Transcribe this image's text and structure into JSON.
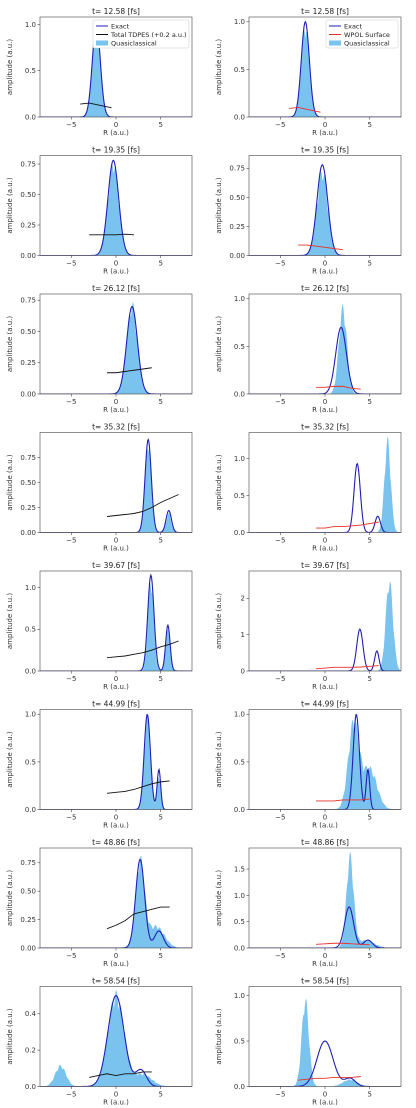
{
  "legend_left": [
    "Exact",
    "Total TDPES (+0.2 a.u.)",
    "Quasiclassical"
  ],
  "legend_right": [
    "Exact",
    "WPOL Surface",
    "Quasiclassical"
  ],
  "colors": {
    "exact": "#1f1fb4",
    "tdpes": "#111111",
    "wpol": "#e8312a",
    "quasi": "#79c3ee",
    "axes": "#444444"
  },
  "chart_data": {
    "type": "line",
    "xlabel": "R (a.u.)",
    "ylabel": "amplitude (a.u.)",
    "xlim": [
      -8.5,
      8.5
    ],
    "x_ticks": [
      -5,
      0,
      5
    ],
    "rows": [
      {
        "title": "t= 12.58 [fs]",
        "left_ylim": [
          0,
          1.08
        ],
        "left_yticks": [
          0.0,
          0.5,
          1.0
        ],
        "right_ylim": [
          0,
          1.05
        ],
        "right_yticks": [
          0.0,
          0.5,
          1.0
        ],
        "exact": [
          {
            "mu": -2.2,
            "sigma": 0.45,
            "amp": 1.0
          }
        ],
        "quasi_left": [
          {
            "mu": -2.2,
            "sigma": 0.45,
            "amp": 1.05
          }
        ],
        "quasi_right": [
          {
            "mu": -2.2,
            "sigma": 0.45,
            "amp": 1.0
          }
        ],
        "tdpes": [
          [
            -4,
            0.14
          ],
          [
            -3,
            0.15
          ],
          [
            -2,
            0.13
          ],
          [
            -1,
            0.11
          ],
          [
            -0.5,
            0.1
          ]
        ],
        "wpol": [
          [
            -4,
            0.09
          ],
          [
            -3,
            0.1
          ],
          [
            -2,
            0.08
          ],
          [
            -1,
            0.06
          ],
          [
            -0.5,
            0.05
          ]
        ]
      },
      {
        "title": "t= 19.35 [fs]",
        "left_ylim": [
          0,
          0.82
        ],
        "left_yticks": [
          0.0,
          0.25,
          0.5,
          0.75
        ],
        "right_ylim": [
          0,
          0.86
        ],
        "right_yticks": [
          0.0,
          0.25,
          0.5,
          0.75
        ],
        "exact": [
          {
            "mu": -0.3,
            "sigma": 0.6,
            "amp": 0.78
          }
        ],
        "quasi_left": [
          {
            "mu": -0.3,
            "sigma": 0.6,
            "amp": 0.8
          }
        ],
        "quasi_right": [
          {
            "mu": -0.3,
            "sigma": 0.6,
            "amp": 0.76
          }
        ],
        "tdpes": [
          [
            -3,
            0.17
          ],
          [
            -2,
            0.17
          ],
          [
            -1,
            0.17
          ],
          [
            0,
            0.17
          ],
          [
            1,
            0.175
          ],
          [
            2,
            0.17
          ]
        ],
        "wpol": [
          [
            -3,
            0.09
          ],
          [
            -2,
            0.09
          ],
          [
            -1,
            0.08
          ],
          [
            0,
            0.07
          ],
          [
            1,
            0.06
          ],
          [
            2,
            0.05
          ]
        ]
      },
      {
        "title": "t= 26.12 [fs]",
        "left_ylim": [
          0,
          0.8
        ],
        "left_yticks": [
          0.0,
          0.25,
          0.5,
          0.75
        ],
        "right_ylim": [
          0,
          1.05
        ],
        "right_yticks": [
          0.0,
          0.5,
          1.0
        ],
        "exact": [
          {
            "mu": 1.8,
            "sigma": 0.6,
            "amp": 0.7
          }
        ],
        "quasi_left": [
          {
            "mu": 1.8,
            "sigma": 0.6,
            "amp": 0.75
          }
        ],
        "quasi_right": [
          {
            "mu": 2.0,
            "sigma": 0.45,
            "amp": 0.95
          }
        ],
        "tdpes": [
          [
            -1,
            0.17
          ],
          [
            0,
            0.17
          ],
          [
            1,
            0.18
          ],
          [
            2,
            0.19
          ],
          [
            3,
            0.2
          ],
          [
            4,
            0.21
          ]
        ],
        "wpol": [
          [
            -1,
            0.07
          ],
          [
            0,
            0.07
          ],
          [
            1,
            0.08
          ],
          [
            2,
            0.08
          ],
          [
            3,
            0.06
          ],
          [
            4,
            0.05
          ]
        ]
      },
      {
        "title": "t= 35.32 [fs]",
        "left_ylim": [
          0,
          1.0
        ],
        "left_yticks": [
          0.0,
          0.25,
          0.5,
          0.75
        ],
        "right_ylim": [
          0,
          1.35
        ],
        "right_yticks": [
          0.0,
          0.5,
          1.0
        ],
        "exact": [
          {
            "mu": 3.6,
            "sigma": 0.35,
            "amp": 0.93
          },
          {
            "mu": 5.9,
            "sigma": 0.3,
            "amp": 0.22
          }
        ],
        "quasi_left": [
          {
            "mu": 3.6,
            "sigma": 0.33,
            "amp": 0.96
          },
          {
            "mu": 5.9,
            "sigma": 0.28,
            "amp": 0.2
          }
        ],
        "quasi_right": [
          {
            "mu": 7.0,
            "sigma": 0.35,
            "amp": 1.3
          }
        ],
        "tdpes": [
          [
            -1,
            0.16
          ],
          [
            0,
            0.17
          ],
          [
            1,
            0.18
          ],
          [
            2,
            0.19
          ],
          [
            3,
            0.21
          ],
          [
            4,
            0.25
          ],
          [
            5,
            0.3
          ],
          [
            6,
            0.34
          ],
          [
            7,
            0.38
          ]
        ],
        "wpol": [
          [
            -1,
            0.06
          ],
          [
            0,
            0.06
          ],
          [
            1,
            0.08
          ],
          [
            2,
            0.08
          ],
          [
            3,
            0.09
          ],
          [
            4,
            0.1
          ],
          [
            5,
            0.12
          ],
          [
            6,
            0.14
          ]
        ]
      },
      {
        "title": "t= 39.67 [fs]",
        "left_ylim": [
          0,
          1.2
        ],
        "left_yticks": [
          0.0,
          0.5,
          1.0
        ],
        "right_ylim": [
          0,
          2.75
        ],
        "right_yticks": [
          0,
          1,
          2
        ],
        "exact": [
          {
            "mu": 3.9,
            "sigma": 0.35,
            "amp": 1.15
          },
          {
            "mu": 5.8,
            "sigma": 0.25,
            "amp": 0.55
          }
        ],
        "quasi_left": [
          {
            "mu": 3.9,
            "sigma": 0.32,
            "amp": 1.15
          },
          {
            "mu": 5.8,
            "sigma": 0.25,
            "amp": 0.5
          }
        ],
        "quasi_right": [
          {
            "mu": 7.2,
            "sigma": 0.4,
            "amp": 2.6
          }
        ],
        "tdpes": [
          [
            -1,
            0.16
          ],
          [
            0,
            0.17
          ],
          [
            1,
            0.18
          ],
          [
            2,
            0.2
          ],
          [
            3,
            0.22
          ],
          [
            4,
            0.25
          ],
          [
            5,
            0.29
          ],
          [
            6,
            0.32
          ],
          [
            7,
            0.36
          ]
        ],
        "wpol": [
          [
            -1,
            0.06
          ],
          [
            0,
            0.08
          ],
          [
            1,
            0.1
          ],
          [
            2,
            0.1
          ],
          [
            3,
            0.1
          ],
          [
            4,
            0.11
          ],
          [
            5,
            0.13
          ],
          [
            6,
            0.15
          ]
        ]
      },
      {
        "title": "t= 44.99 [fs]",
        "left_ylim": [
          0,
          1.05
        ],
        "left_yticks": [
          0.0,
          0.5,
          1.0
        ],
        "right_ylim": [
          0,
          1.05
        ],
        "right_yticks": [
          0.0,
          0.5,
          1.0
        ],
        "exact": [
          {
            "mu": 3.5,
            "sigma": 0.35,
            "amp": 1.0
          },
          {
            "mu": 4.8,
            "sigma": 0.2,
            "amp": 0.42
          }
        ],
        "quasi_left": [
          {
            "mu": 3.5,
            "sigma": 0.35,
            "amp": 1.0
          },
          {
            "mu": 4.8,
            "sigma": 0.2,
            "amp": 0.38
          }
        ],
        "quasi_right": [
          {
            "mu": 3.2,
            "sigma": 0.6,
            "amp": 0.95
          },
          {
            "mu": 5.0,
            "sigma": 0.8,
            "amp": 0.45
          }
        ],
        "tdpes": [
          [
            -1,
            0.17
          ],
          [
            0,
            0.18
          ],
          [
            1,
            0.19
          ],
          [
            2,
            0.21
          ],
          [
            3,
            0.24
          ],
          [
            4,
            0.27
          ],
          [
            5,
            0.29
          ],
          [
            6,
            0.3
          ]
        ],
        "wpol": [
          [
            -1,
            0.09
          ],
          [
            0,
            0.09
          ],
          [
            1,
            0.09
          ],
          [
            2,
            0.1
          ],
          [
            3,
            0.1
          ],
          [
            4,
            0.1
          ],
          [
            5,
            0.11
          ]
        ]
      },
      {
        "title": "t= 48.86 [fs]",
        "left_ylim": [
          0,
          0.88
        ],
        "left_yticks": [
          0.0,
          0.25,
          0.5,
          0.75
        ],
        "right_ylim": [
          0,
          1.9
        ],
        "right_yticks": [
          0.0,
          0.5,
          1.0,
          1.5
        ],
        "exact": [
          {
            "mu": 2.7,
            "sigma": 0.5,
            "amp": 0.78
          },
          {
            "mu": 4.8,
            "sigma": 0.5,
            "amp": 0.15
          }
        ],
        "quasi_left": [
          {
            "mu": 2.7,
            "sigma": 0.5,
            "amp": 0.8
          },
          {
            "mu": 4.5,
            "sigma": 0.9,
            "amp": 0.2
          }
        ],
        "quasi_right": [
          {
            "mu": 2.8,
            "sigma": 0.4,
            "amp": 1.8
          },
          {
            "mu": 4.5,
            "sigma": 1.0,
            "amp": 0.15
          }
        ],
        "tdpes": [
          [
            -1,
            0.17
          ],
          [
            0,
            0.2
          ],
          [
            1,
            0.24
          ],
          [
            2,
            0.3
          ],
          [
            3,
            0.32
          ],
          [
            4,
            0.34
          ],
          [
            5,
            0.36
          ],
          [
            6,
            0.36
          ]
        ],
        "wpol": [
          [
            -1,
            0.07
          ],
          [
            0,
            0.08
          ],
          [
            1,
            0.09
          ],
          [
            2,
            0.09
          ],
          [
            3,
            0.08
          ],
          [
            4,
            0.07
          ],
          [
            5,
            0.06
          ]
        ]
      },
      {
        "title": "t= 58.54 [fs]",
        "left_ylim": [
          0,
          0.55
        ],
        "left_yticks": [
          0.0,
          0.2,
          0.4
        ],
        "right_ylim": [
          0,
          1.1
        ],
        "right_yticks": [
          0.0,
          0.5,
          1.0
        ],
        "exact": [
          {
            "mu": 0.0,
            "sigma": 0.9,
            "amp": 0.5
          },
          {
            "mu": 2.8,
            "sigma": 0.6,
            "amp": 0.09
          }
        ],
        "quasi_left": [
          {
            "mu": 0.0,
            "sigma": 0.9,
            "amp": 0.53
          },
          {
            "mu": -6.2,
            "sigma": 0.6,
            "amp": 0.12
          },
          {
            "mu": 3.0,
            "sigma": 1.0,
            "amp": 0.07
          }
        ],
        "quasi_right": [
          {
            "mu": -2.2,
            "sigma": 0.4,
            "amp": 1.0
          },
          {
            "mu": 2.8,
            "sigma": 0.8,
            "amp": 0.08
          }
        ],
        "tdpes": [
          [
            -3,
            0.05
          ],
          [
            -2,
            0.06
          ],
          [
            -1,
            0.07
          ],
          [
            0,
            0.06
          ],
          [
            1,
            0.07
          ],
          [
            2,
            0.07
          ],
          [
            3,
            0.08
          ],
          [
            4,
            0.08
          ]
        ],
        "wpol": [
          [
            -3,
            0.07
          ],
          [
            -2,
            0.08
          ],
          [
            -1,
            0.09
          ],
          [
            0,
            0.09
          ],
          [
            1,
            0.1
          ],
          [
            2,
            0.1
          ],
          [
            3,
            0.1
          ],
          [
            4,
            0.11
          ]
        ]
      }
    ]
  }
}
